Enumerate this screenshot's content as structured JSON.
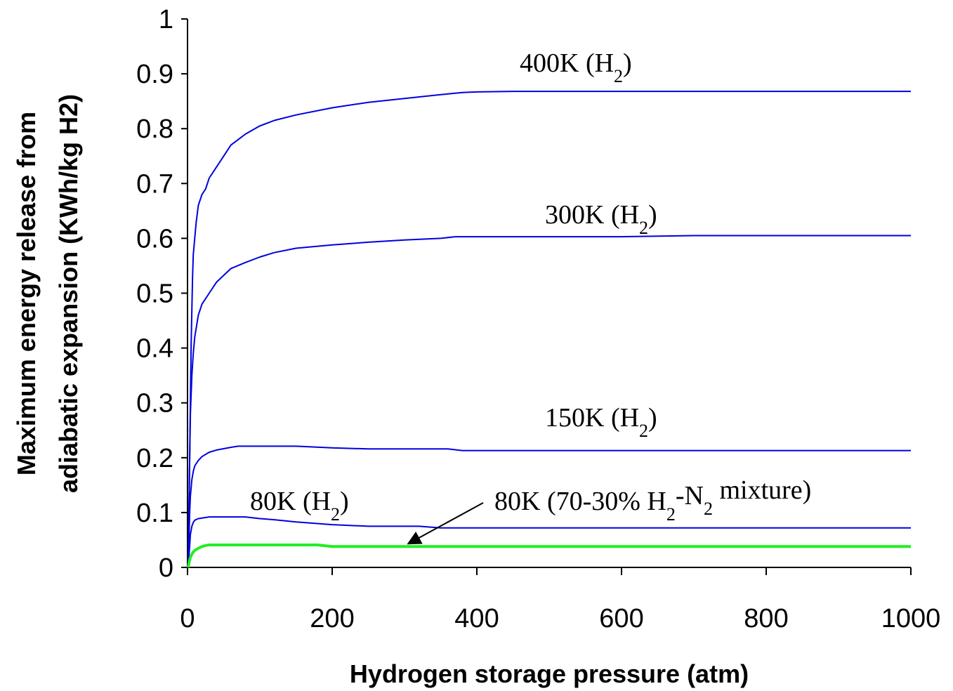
{
  "chart_data": {
    "type": "line",
    "xlabel": "Hydrogen storage pressure (atm)",
    "ylabel_lines": [
      "Maximum energy release from",
      "adiabatic expansion (KWh/kg H2)"
    ],
    "xlim": [
      0,
      1000
    ],
    "ylim": [
      0,
      1
    ],
    "x_ticks": [
      "0",
      "200",
      "400",
      "600",
      "800",
      "1000"
    ],
    "y_ticks": [
      "0",
      "0.1",
      "0.2",
      "0.3",
      "0.4",
      "0.5",
      "0.6",
      "0.7",
      "0.8",
      "0.9",
      "1"
    ],
    "grid": false,
    "series": [
      {
        "name": "400K (H2)",
        "color": "#0000e0",
        "x": [
          1,
          2,
          3,
          4,
          5,
          6,
          7,
          8,
          10,
          12,
          15,
          20,
          25,
          30,
          40,
          50,
          60,
          70,
          80,
          100,
          120,
          150,
          200,
          250,
          300,
          350,
          380,
          400,
          450,
          500,
          600,
          700,
          800,
          1000
        ],
        "y": [
          0.0,
          0.1,
          0.2,
          0.3,
          0.4,
          0.47,
          0.53,
          0.57,
          0.6,
          0.63,
          0.66,
          0.68,
          0.69,
          0.71,
          0.73,
          0.75,
          0.77,
          0.78,
          0.79,
          0.805,
          0.815,
          0.825,
          0.838,
          0.848,
          0.855,
          0.862,
          0.866,
          0.867,
          0.868,
          0.868,
          0.868,
          0.868,
          0.868,
          0.868
        ]
      },
      {
        "name": "300K (H2)",
        "color": "#0000e0",
        "x": [
          1,
          2,
          3,
          4,
          6,
          8,
          10,
          15,
          20,
          30,
          40,
          60,
          80,
          100,
          120,
          150,
          200,
          250,
          300,
          350,
          370,
          400,
          500,
          600,
          700,
          800,
          1000
        ],
        "y": [
          0.0,
          0.1,
          0.2,
          0.28,
          0.35,
          0.39,
          0.42,
          0.46,
          0.48,
          0.5,
          0.52,
          0.545,
          0.556,
          0.566,
          0.574,
          0.582,
          0.588,
          0.593,
          0.597,
          0.6,
          0.603,
          0.603,
          0.603,
          0.603,
          0.605,
          0.605,
          0.605
        ]
      },
      {
        "name": "150K (H2)",
        "color": "#0000e0",
        "x": [
          1,
          2,
          3,
          4,
          6,
          8,
          10,
          15,
          20,
          30,
          40,
          60,
          70,
          100,
          150,
          200,
          250,
          300,
          360,
          380,
          400,
          600,
          800,
          1000
        ],
        "y": [
          0.0,
          0.05,
          0.1,
          0.13,
          0.16,
          0.175,
          0.185,
          0.195,
          0.202,
          0.21,
          0.214,
          0.219,
          0.221,
          0.221,
          0.221,
          0.218,
          0.216,
          0.216,
          0.216,
          0.213,
          0.213,
          0.213,
          0.213,
          0.213
        ]
      },
      {
        "name": "80K (H2)",
        "color": "#0000e0",
        "x": [
          1,
          2,
          3,
          4,
          6,
          8,
          10,
          15,
          20,
          30,
          40,
          60,
          80,
          100,
          120,
          150,
          200,
          250,
          300,
          320,
          350,
          400,
          600,
          800,
          1000
        ],
        "y": [
          0.0,
          0.02,
          0.04,
          0.06,
          0.075,
          0.082,
          0.086,
          0.089,
          0.09,
          0.092,
          0.092,
          0.092,
          0.092,
          0.089,
          0.087,
          0.083,
          0.078,
          0.075,
          0.075,
          0.075,
          0.072,
          0.072,
          0.072,
          0.072,
          0.072
        ]
      },
      {
        "name": "80K (70-30% H2-N2 mixture)",
        "color": "#22ee22",
        "x": [
          1,
          2,
          4,
          6,
          8,
          10,
          15,
          20,
          25,
          30,
          50,
          100,
          150,
          180,
          200,
          300,
          400,
          600,
          800,
          1000
        ],
        "y": [
          0.0,
          0.008,
          0.018,
          0.024,
          0.028,
          0.031,
          0.035,
          0.038,
          0.04,
          0.041,
          0.041,
          0.041,
          0.041,
          0.041,
          0.038,
          0.038,
          0.038,
          0.038,
          0.038,
          0.038
        ]
      }
    ],
    "annotations": [
      {
        "base": "400K (H",
        "sub": "2",
        "tail": ")"
      },
      {
        "base": "300K (H",
        "sub": "2",
        "tail": ")"
      },
      {
        "base": "150K (H",
        "sub": "2",
        "tail": ")"
      },
      {
        "base": "80K (H",
        "sub": "2",
        "tail": ")"
      },
      {
        "base": "80K (70-30% H",
        "sub": "2",
        "mid": "-N",
        "sub2": "2",
        "tail": " mixture)"
      }
    ],
    "arrow_target": {
      "x": 305,
      "y": 0.038
    }
  }
}
